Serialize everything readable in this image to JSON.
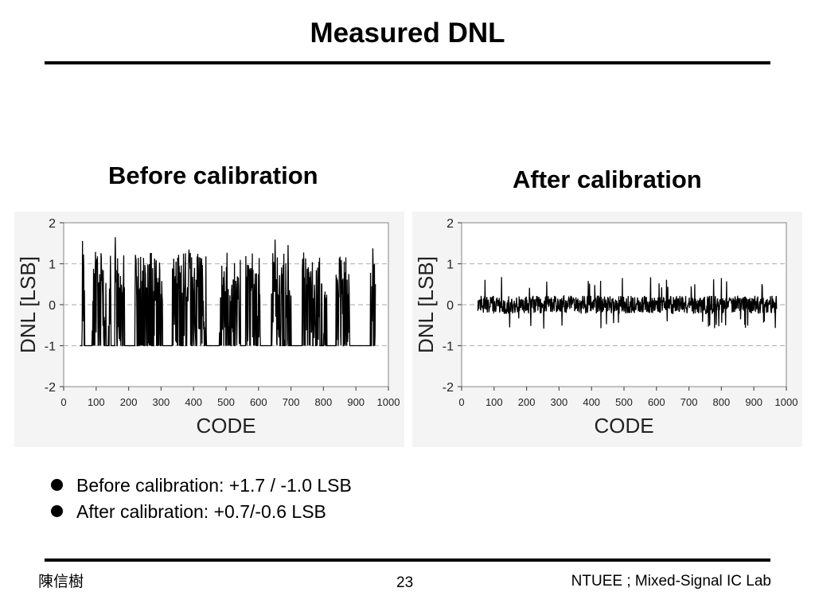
{
  "slide": {
    "title": "Measured DNL",
    "bullets": [
      "Before calibration: +1.7 / -1.0 LSB",
      "After calibration: +0.7/-0.6 LSB"
    ],
    "footer": {
      "author": "陳信樹",
      "page": "23",
      "lab": "NTUEE ; Mixed-Signal IC Lab"
    }
  },
  "chart_data": [
    {
      "type": "line",
      "title": "Before calibration",
      "xlabel": "CODE",
      "ylabel": "DNL [LSB]",
      "xlim": [
        0,
        1000
      ],
      "ylim": [
        -2,
        2
      ],
      "xticks": [
        0,
        100,
        200,
        300,
        400,
        500,
        600,
        700,
        800,
        900,
        1000
      ],
      "yticks": [
        -2,
        -1,
        0,
        1,
        2
      ],
      "grid": "dashed horizontal at -1, 0, 1",
      "code_range": [
        50,
        960
      ],
      "dnl_max": 1.7,
      "dnl_min": -1.0,
      "clusters": [
        [
          57,
          64
        ],
        [
          88,
          130
        ],
        [
          138,
          145
        ],
        [
          158,
          188
        ],
        [
          220,
          305
        ],
        [
          335,
          440
        ],
        [
          480,
          545
        ],
        [
          560,
          605
        ],
        [
          640,
          700
        ],
        [
          735,
          810
        ],
        [
          838,
          880
        ],
        [
          945,
          960
        ]
      ],
      "noise_amplitude": 0.9,
      "color": "#000000"
    },
    {
      "type": "line",
      "title": "After calibration",
      "xlabel": "CODE",
      "ylabel": "DNL [LSB]",
      "xlim": [
        0,
        1000
      ],
      "ylim": [
        -2,
        2
      ],
      "xticks": [
        0,
        100,
        200,
        300,
        400,
        500,
        600,
        700,
        800,
        900,
        1000
      ],
      "yticks": [
        -2,
        -1,
        0,
        1,
        2
      ],
      "grid": "dashed horizontal at -1, 0, 1",
      "code_range": [
        50,
        970
      ],
      "dnl_max": 0.7,
      "dnl_min": -0.6,
      "clusters": [],
      "noise_amplitude": 0.22,
      "color": "#000000"
    }
  ]
}
